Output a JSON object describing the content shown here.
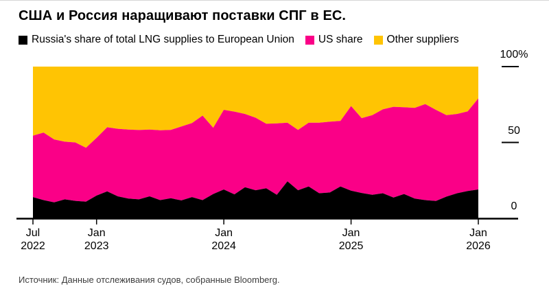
{
  "title": "США и Россия наращивают поставки СПГ в ЕС.",
  "legend": [
    {
      "label": "Russia's share of total LNG supplies to European Union",
      "color": "#000000"
    },
    {
      "label": "US share",
      "color": "#FA0087"
    },
    {
      "label": "Other suppliers",
      "color": "#FFC403"
    }
  ],
  "source": "Источник: Данные отслеживания судов, собранные Bloomberg.",
  "chart_data": {
    "type": "area",
    "stacked": true,
    "unit": "%",
    "ylim": [
      0,
      100
    ],
    "grid": false,
    "legend_position": "top",
    "y_axis_side": "right",
    "x": [
      "Jul 2022",
      "Aug 2022",
      "Sep 2022",
      "Oct 2022",
      "Nov 2022",
      "Dec 2022",
      "Jan 2023",
      "Feb 2023",
      "Mar 2023",
      "Apr 2023",
      "May 2023",
      "Jun 2023",
      "Jul 2023",
      "Aug 2023",
      "Sep 2023",
      "Oct 2023",
      "Nov 2023",
      "Dec 2023",
      "Jan 2024",
      "Feb 2024",
      "Mar 2024",
      "Apr 2024",
      "May 2024",
      "Jun 2024",
      "Jul 2024",
      "Aug 2024",
      "Sep 2024",
      "Oct 2024",
      "Nov 2024",
      "Dec 2024",
      "Jan 2025",
      "Feb 2025",
      "Mar 2025",
      "Apr 2025",
      "May 2025",
      "Jun 2025",
      "Jul 2025",
      "Aug 2025",
      "Sep 2025",
      "Oct 2025",
      "Nov 2025",
      "Dec 2025",
      "Jan 2026"
    ],
    "series": [
      {
        "name": "Russia's share of total LNG supplies to European Union",
        "color": "#000000",
        "values": [
          14,
          12,
          10.5,
          12.5,
          11.5,
          11,
          15,
          17.8,
          14.5,
          13,
          12.5,
          14.5,
          12,
          13.2,
          11.8,
          14,
          12,
          16,
          19,
          15.8,
          20.5,
          18.5,
          19.8,
          15.5,
          24.4,
          18.5,
          21,
          16.5,
          17,
          21,
          18.2,
          16.7,
          15.5,
          16.5,
          13.7,
          16,
          13,
          12,
          11.4,
          14.3,
          16.5,
          18,
          19
        ]
      },
      {
        "name": "US share",
        "color": "#FA0087",
        "values": [
          40.5,
          44.5,
          41.5,
          38,
          38.5,
          35.5,
          38,
          42.2,
          44.5,
          45.5,
          45.7,
          44,
          46,
          45.1,
          48.7,
          48.8,
          55.7,
          43.7,
          52.5,
          54.5,
          48.3,
          47.8,
          42.5,
          47.1,
          38.6,
          39.8,
          42,
          46.5,
          46.7,
          43.2,
          55.8,
          49.3,
          52.5,
          55.3,
          59.8,
          57.2,
          59.8,
          63.3,
          60.1,
          53.7,
          52.3,
          52.5,
          60
        ]
      },
      {
        "name": "Other suppliers",
        "color": "#FFC403",
        "values": [
          45.5,
          43.5,
          48,
          49.5,
          50,
          53.5,
          47,
          40,
          41,
          41.5,
          41.8,
          41.5,
          42,
          41.7,
          39.5,
          37.2,
          32.3,
          40.3,
          28.5,
          29.7,
          31.2,
          33.7,
          37.7,
          37.4,
          37,
          41.7,
          37,
          37,
          36.3,
          35.8,
          26,
          34,
          32,
          28.2,
          26.5,
          26.8,
          27.2,
          24.7,
          28.5,
          32,
          31.2,
          29.5,
          21
        ]
      }
    ],
    "y_ticks": [
      {
        "label": "100%",
        "value": 100,
        "tick": true
      },
      {
        "label": "50",
        "value": 50,
        "tick": true
      },
      {
        "label": "0",
        "value": 0,
        "tick": false
      }
    ],
    "x_ticks": [
      {
        "month": "Jul",
        "year": "2022",
        "index": 0
      },
      {
        "month": "Jan",
        "year": "2023",
        "index": 6
      },
      {
        "month": "Jan",
        "year": "2024",
        "index": 18
      },
      {
        "month": "Jan",
        "year": "2025",
        "index": 30
      },
      {
        "month": "Jan",
        "year": "2026",
        "index": 42
      }
    ]
  }
}
